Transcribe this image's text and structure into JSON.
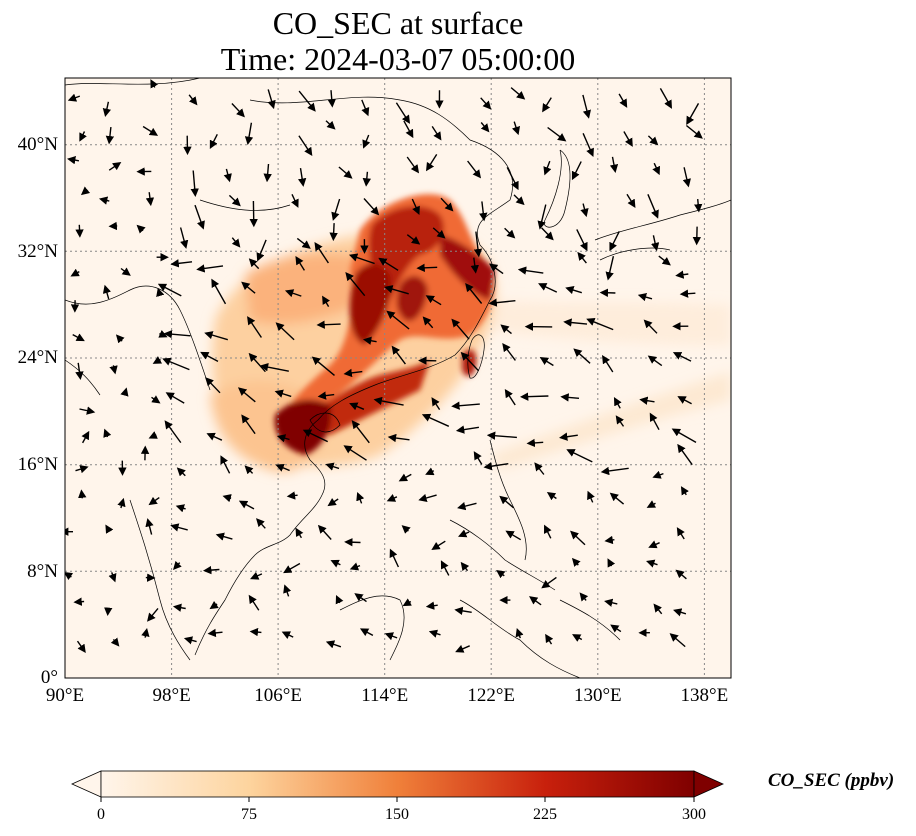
{
  "title": {
    "line1": "CO_SEC at surface",
    "line2": "Time: 2024-03-07 05:00:00"
  },
  "map": {
    "lon_range": [
      90,
      140
    ],
    "lat_range": [
      0,
      45
    ],
    "lat_ticks": [
      "40°N",
      "32°N",
      "24°N",
      "16°N",
      "8°N",
      "0°"
    ],
    "lon_ticks": [
      "90°E",
      "98°E",
      "106°E",
      "114°E",
      "122°E",
      "130°E",
      "138°E"
    ],
    "gridlines": true,
    "background_color": "#fff5eb",
    "plume_colors": [
      "#fde6cc",
      "#fdb57a",
      "#f2703a",
      "#c52a0c",
      "#800000"
    ]
  },
  "colorbar": {
    "label": "CO_SEC (ppbv)",
    "ticks": [
      "0",
      "75",
      "150",
      "225",
      "300"
    ],
    "range": [
      0,
      300
    ],
    "colormap": "OrRd",
    "extend": "both"
  }
}
